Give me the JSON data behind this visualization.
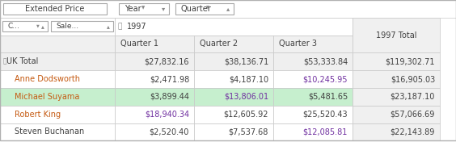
{
  "rows": [
    {
      "label": "UK Total",
      "label_color": "#404040",
      "is_total": true,
      "row_bg": "#efefef",
      "values": [
        "$27,832.16",
        "$38,136.71",
        "$53,333.84",
        "$119,302.71"
      ],
      "value_colors": [
        "#404040",
        "#404040",
        "#404040",
        "#404040"
      ],
      "label_bold": false
    },
    {
      "label": "Anne Dodsworth",
      "label_color": "#c55a11",
      "is_total": false,
      "row_bg": "#ffffff",
      "values": [
        "$2,471.98",
        "$4,187.10",
        "$10,245.95",
        "$16,905.03"
      ],
      "value_colors": [
        "#404040",
        "#404040",
        "#7030a0",
        "#404040"
      ],
      "label_bold": false
    },
    {
      "label": "Michael Suyama",
      "label_color": "#c55a11",
      "is_total": false,
      "row_bg": "#c6efce",
      "values": [
        "$3,899.44",
        "$13,806.01",
        "$5,481.65",
        "$23,187.10"
      ],
      "value_colors": [
        "#404040",
        "#7030a0",
        "#404040",
        "#404040"
      ],
      "label_bold": false
    },
    {
      "label": "Robert King",
      "label_color": "#c55a11",
      "is_total": false,
      "row_bg": "#ffffff",
      "values": [
        "$18,940.34",
        "$12,605.92",
        "$25,520.43",
        "$57,066.69"
      ],
      "value_colors": [
        "#7030a0",
        "#404040",
        "#404040",
        "#404040"
      ],
      "label_bold": false
    },
    {
      "label": "Steven Buchanan",
      "label_color": "#404040",
      "is_total": false,
      "row_bg": "#ffffff",
      "values": [
        "$2,520.40",
        "$7,537.68",
        "$12,085.81",
        "$22,143.89"
      ],
      "value_colors": [
        "#404040",
        "#404040",
        "#7030a0",
        "#404040"
      ],
      "label_bold": false
    }
  ],
  "col_headers": [
    "Quarter 1",
    "Quarter 2",
    "Quarter 3"
  ],
  "total_col_header": "1997 Total",
  "year_label": "1997",
  "filter1_label": "Extended Price",
  "filter2_label": "C...",
  "filter3_label": "Sale...",
  "year_col_label": "Year",
  "quarter_col_label": "Quarter",
  "border_color": "#c8c8c8",
  "header_bg": "#f0f0f0",
  "total_col_bg": "#f0f0f0",
  "fig_w": 5.64,
  "fig_h": 2.02,
  "dpi": 100
}
